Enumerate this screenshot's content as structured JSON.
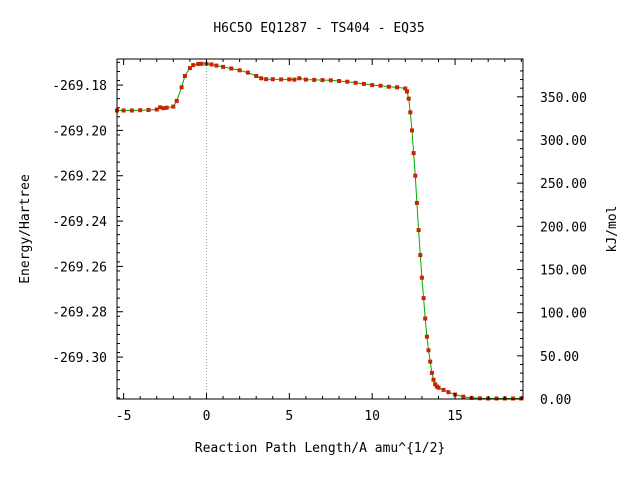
{
  "chart_data": {
    "type": "line",
    "title": "H6C5O   EQ1287 - TS404 - EQ35",
    "xlabel": "Reaction Path Length/A amu^{1/2}",
    "ylabel": "Energy/Hartree",
    "y2label": "kJ/mol",
    "xlim": [
      -5.4,
      19.1
    ],
    "ylim": [
      -269.3185,
      -269.1685
    ],
    "y2lim": [
      0,
      393.8
    ],
    "x_ticks": [
      -5,
      0,
      5,
      10,
      15
    ],
    "y_ticks": [
      -269.18,
      -269.2,
      -269.22,
      -269.24,
      -269.26,
      -269.28,
      -269.3
    ],
    "y2_ticks": [
      0,
      50,
      100,
      150,
      200,
      250,
      300,
      350
    ],
    "x_tick_labels": [
      "-5",
      "0",
      "5",
      "10",
      "15"
    ],
    "y_tick_labels": [
      "-269.18",
      "-269.20",
      "-269.22",
      "-269.24",
      "-269.26",
      "-269.28",
      "-269.30"
    ],
    "y2_tick_labels": [
      "0.00",
      "50.00",
      "100.00",
      "150.00",
      "200.00",
      "250.00",
      "300.00",
      "350.00"
    ],
    "ts_marker_x": 0,
    "colors": {
      "line": "#00aa00",
      "points": "#cc2200",
      "ts_line": "#999999",
      "axis": "#000000"
    },
    "series": [
      {
        "x": [
          -5.4,
          -5.0,
          -4.5,
          -4.0,
          -3.5,
          -3.0,
          -2.8,
          -2.6,
          -2.4,
          -2.0,
          -1.8,
          -1.5,
          -1.3,
          -1.0,
          -0.8,
          -0.5,
          -0.3,
          0.0,
          0.3,
          0.6,
          1.0,
          1.5,
          2.0,
          2.5,
          3.0,
          3.3,
          3.6,
          4.0,
          4.5,
          5.0,
          5.3,
          5.6,
          6.0,
          6.5,
          7.0,
          7.5,
          8.0,
          8.5,
          9.0,
          9.5,
          10.0,
          10.5,
          11.0,
          11.5,
          12.0,
          12.1,
          12.2,
          12.3,
          12.4,
          12.5,
          12.6,
          12.7,
          12.8,
          12.9,
          13.0,
          13.1,
          13.2,
          13.3,
          13.4,
          13.5,
          13.6,
          13.7,
          13.8,
          13.9,
          14.0,
          14.3,
          14.6,
          15.0,
          15.5,
          16.0,
          16.5,
          17.0,
          17.5,
          18.0,
          18.5,
          19.0
        ],
        "y": [
          -269.1912,
          -269.1912,
          -269.1912,
          -269.1911,
          -269.191,
          -269.1908,
          -269.1898,
          -269.1902,
          -269.19,
          -269.1895,
          -269.187,
          -269.181,
          -269.176,
          -269.1725,
          -269.1712,
          -269.1707,
          -269.1706,
          -269.1706,
          -269.1709,
          -269.1714,
          -269.172,
          -269.1727,
          -269.1735,
          -269.1745,
          -269.176,
          -269.177,
          -269.1774,
          -269.1774,
          -269.1775,
          -269.1775,
          -269.1776,
          -269.177,
          -269.1776,
          -269.1777,
          -269.1778,
          -269.1779,
          -269.1782,
          -269.1785,
          -269.179,
          -269.1795,
          -269.18,
          -269.1803,
          -269.1807,
          -269.181,
          -269.1815,
          -269.1828,
          -269.186,
          -269.192,
          -269.2,
          -269.21,
          -269.22,
          -269.232,
          -269.244,
          -269.255,
          -269.265,
          -269.274,
          -269.283,
          -269.291,
          -269.297,
          -269.302,
          -269.307,
          -269.31,
          -269.312,
          -269.313,
          -269.3135,
          -269.3145,
          -269.3155,
          -269.3165,
          -269.3175,
          -269.318,
          -269.3182,
          -269.3183,
          -269.3183,
          -269.3183,
          -269.3183,
          -269.3183
        ]
      }
    ]
  }
}
